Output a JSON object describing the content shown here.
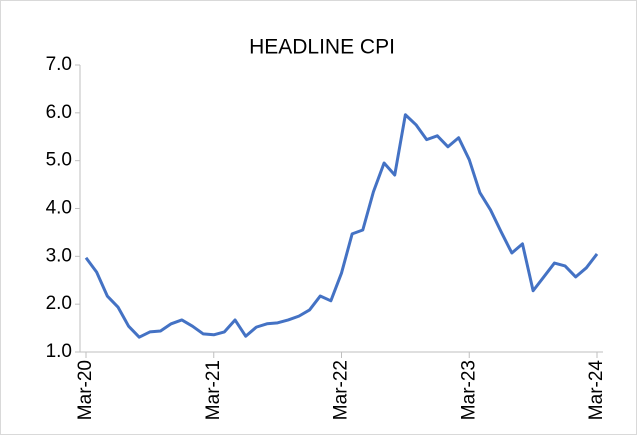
{
  "chart_data": {
    "type": "line",
    "title": "HEADLINE CPI",
    "categories": [
      "Mar-20",
      null,
      null,
      null,
      null,
      null,
      null,
      null,
      null,
      null,
      null,
      null,
      "Mar-21",
      null,
      null,
      null,
      null,
      null,
      null,
      null,
      null,
      null,
      null,
      null,
      "Mar-22",
      null,
      null,
      null,
      null,
      null,
      null,
      null,
      null,
      null,
      null,
      null,
      "Mar-23",
      null,
      null,
      null,
      null,
      null,
      null,
      null,
      null,
      null,
      null,
      null,
      "Mar-24"
    ],
    "series": [
      {
        "name": "Headline CPI",
        "color": "#4472c4",
        "values": [
          2.97,
          2.67,
          2.17,
          1.94,
          1.54,
          1.31,
          1.42,
          1.44,
          1.59,
          1.67,
          1.54,
          1.38,
          1.36,
          1.42,
          1.67,
          1.33,
          1.52,
          1.59,
          1.61,
          1.67,
          1.75,
          1.88,
          2.17,
          2.07,
          2.65,
          3.47,
          3.55,
          4.35,
          4.95,
          4.7,
          5.96,
          5.75,
          5.44,
          5.52,
          5.29,
          5.48,
          5.02,
          4.33,
          3.97,
          3.51,
          3.07,
          3.26,
          2.28,
          2.57,
          2.86,
          2.8,
          2.57,
          2.76,
          3.05
        ]
      }
    ],
    "ylim": [
      1,
      7
    ],
    "yticks": [
      {
        "value": 1,
        "label": "1.0"
      },
      {
        "value": 2,
        "label": "2.0"
      },
      {
        "value": 3,
        "label": "3.0"
      },
      {
        "value": 4,
        "label": "4.0"
      },
      {
        "value": 5,
        "label": "5.0"
      },
      {
        "value": 6,
        "label": "6.0"
      },
      {
        "value": 7,
        "label": "7.0"
      }
    ],
    "grid": false
  }
}
